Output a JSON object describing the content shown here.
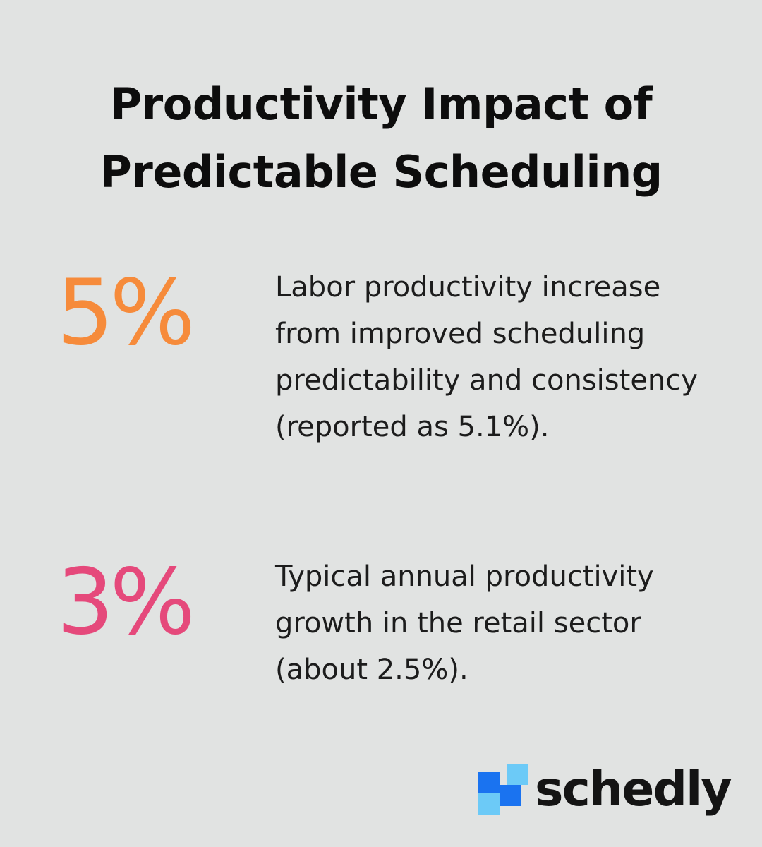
{
  "title": {
    "line1": "Productivity Impact of",
    "line2": "Predictable Scheduling"
  },
  "stats": [
    {
      "value": "5%",
      "color": "#f68b3b",
      "description": "Labor productivity increase from improved scheduling predictability and consistency (reported as 5.1%)."
    },
    {
      "value": "3%",
      "color": "#e5497b",
      "description": "Typical annual productivity growth in the retail sector (about 2.5%)."
    }
  ],
  "brand": {
    "name": "schedly",
    "icon": "blocks-logo-icon",
    "colors": {
      "blue": "#1a73f0",
      "light_blue": "#6ccaf7"
    }
  },
  "colors": {
    "background": "#e1e3e2",
    "text": "#111111"
  }
}
